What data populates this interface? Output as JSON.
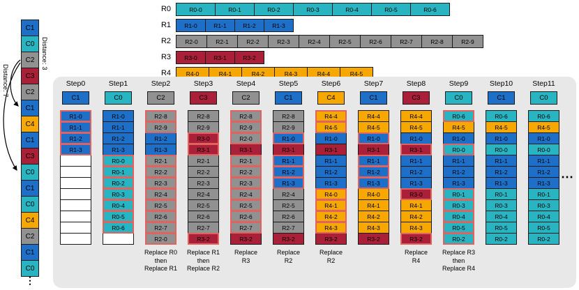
{
  "colors": {
    "c0": "#29B4C2",
    "c1": "#1E6FC8",
    "c2": "#919191",
    "c3": "#AA2038",
    "c4": "#F6A800",
    "empty": "#FFFFFF",
    "highlight_border": "#E0635F",
    "panel_bg": "#E8E8E8"
  },
  "access_sequence": {
    "items": [
      {
        "label": "C1",
        "color": "c1"
      },
      {
        "label": "C0",
        "color": "c0"
      },
      {
        "label": "C2",
        "color": "c2"
      },
      {
        "label": "C3",
        "color": "c3"
      },
      {
        "label": "C2",
        "color": "c2"
      },
      {
        "label": "C1",
        "color": "c1"
      },
      {
        "label": "C4",
        "color": "c4"
      },
      {
        "label": "C1",
        "color": "c1"
      },
      {
        "label": "C3",
        "color": "c3"
      },
      {
        "label": "C0",
        "color": "c0"
      },
      {
        "label": "C1",
        "color": "c1"
      },
      {
        "label": "C0",
        "color": "c0"
      },
      {
        "label": "C4",
        "color": "c4"
      },
      {
        "label": "C2",
        "color": "c2"
      },
      {
        "label": "C1",
        "color": "c1"
      },
      {
        "label": "C0",
        "color": "c0"
      }
    ],
    "ellipsis": "⋮"
  },
  "distance_annotations": [
    {
      "label": "Distance: 3",
      "from_index": 2,
      "to_index": 5
    },
    {
      "label": "Distance: 7",
      "from_index": 2,
      "to_index": 9
    }
  ],
  "rows": [
    {
      "name": "R0",
      "color": "c0",
      "cells": [
        "R0-0",
        "R0-1",
        "R0-2",
        "R0-3",
        "R0-4",
        "R0-5",
        "R0-6"
      ]
    },
    {
      "name": "R1",
      "color": "c1",
      "cells": [
        "R1-0",
        "R1-1",
        "R1-2",
        "R1-3"
      ]
    },
    {
      "name": "R2",
      "color": "c2",
      "cells": [
        "R2-0",
        "R2-1",
        "R2-2",
        "R2-3",
        "R2-4",
        "R2-5",
        "R2-6",
        "R2-7",
        "R2-8",
        "R2-9"
      ]
    },
    {
      "name": "R3",
      "color": "c3",
      "cells": [
        "R3-0",
        "R3-1",
        "R3-2"
      ]
    },
    {
      "name": "R4",
      "color": "c4",
      "cells": [
        "R4-0",
        "R4-1",
        "R4-2",
        "R4-3",
        "R4-4",
        "R4-5"
      ]
    }
  ],
  "steps": [
    {
      "label": "Step0",
      "access": "C1",
      "access_color": "c1",
      "note": "",
      "slots": [
        {
          "t": "R1-0",
          "c": "c1",
          "h": true
        },
        {
          "t": "R1-1",
          "c": "c1",
          "h": true
        },
        {
          "t": "R1-2",
          "c": "c1",
          "h": true
        },
        {
          "t": "R1-3",
          "c": "c1",
          "h": true
        },
        {
          "t": "",
          "c": "empty",
          "h": false
        },
        {
          "t": "",
          "c": "empty",
          "h": false
        },
        {
          "t": "",
          "c": "empty",
          "h": false
        },
        {
          "t": "",
          "c": "empty",
          "h": false
        },
        {
          "t": "",
          "c": "empty",
          "h": false
        },
        {
          "t": "",
          "c": "empty",
          "h": false
        },
        {
          "t": "",
          "c": "empty",
          "h": false
        },
        {
          "t": "",
          "c": "empty",
          "h": false
        }
      ]
    },
    {
      "label": "Step1",
      "access": "C0",
      "access_color": "c0",
      "note": "",
      "slots": [
        {
          "t": "R1-0",
          "c": "c1",
          "h": false
        },
        {
          "t": "R1-1",
          "c": "c1",
          "h": false
        },
        {
          "t": "R1-2",
          "c": "c1",
          "h": false
        },
        {
          "t": "R1-3",
          "c": "c1",
          "h": false
        },
        {
          "t": "R0-0",
          "c": "c0",
          "h": true
        },
        {
          "t": "R0-1",
          "c": "c0",
          "h": true
        },
        {
          "t": "R0-2",
          "c": "c0",
          "h": true
        },
        {
          "t": "R0-3",
          "c": "c0",
          "h": true
        },
        {
          "t": "R0-4",
          "c": "c0",
          "h": true
        },
        {
          "t": "R0-5",
          "c": "c0",
          "h": true
        },
        {
          "t": "R0-6",
          "c": "c0",
          "h": true
        },
        {
          "t": "",
          "c": "empty",
          "h": false
        }
      ]
    },
    {
      "label": "Step2",
      "access": "C2",
      "access_color": "c2",
      "note": "Replace R0\nthen\nReplace R1",
      "slots": [
        {
          "t": "R2-8",
          "c": "c2",
          "h": true
        },
        {
          "t": "R2-9",
          "c": "c2",
          "h": true
        },
        {
          "t": "R1-2",
          "c": "c1",
          "h": false
        },
        {
          "t": "R1-3",
          "c": "c1",
          "h": false
        },
        {
          "t": "R2-1",
          "c": "c2",
          "h": true
        },
        {
          "t": "R2-2",
          "c": "c2",
          "h": true
        },
        {
          "t": "R2-3",
          "c": "c2",
          "h": true
        },
        {
          "t": "R2-4",
          "c": "c2",
          "h": true
        },
        {
          "t": "R2-5",
          "c": "c2",
          "h": true
        },
        {
          "t": "R2-6",
          "c": "c2",
          "h": true
        },
        {
          "t": "R2-7",
          "c": "c2",
          "h": true
        },
        {
          "t": "R2-0",
          "c": "c2",
          "h": true
        }
      ]
    },
    {
      "label": "Step3",
      "access": "C3",
      "access_color": "c3",
      "note": "Replace R1\nthen\nReplace R2",
      "slots": [
        {
          "t": "R2-8",
          "c": "c2",
          "h": false
        },
        {
          "t": "R2-9",
          "c": "c2",
          "h": false
        },
        {
          "t": "R3-0",
          "c": "c3",
          "h": true
        },
        {
          "t": "R3-1",
          "c": "c3",
          "h": true
        },
        {
          "t": "R2-1",
          "c": "c2",
          "h": false
        },
        {
          "t": "R2-2",
          "c": "c2",
          "h": false
        },
        {
          "t": "R2-3",
          "c": "c2",
          "h": false
        },
        {
          "t": "R2-4",
          "c": "c2",
          "h": false
        },
        {
          "t": "R2-5",
          "c": "c2",
          "h": false
        },
        {
          "t": "R2-6",
          "c": "c2",
          "h": false
        },
        {
          "t": "R2-7",
          "c": "c2",
          "h": false
        },
        {
          "t": "R3-2",
          "c": "c3",
          "h": true
        }
      ]
    },
    {
      "label": "Step4",
      "access": "C2",
      "access_color": "c2",
      "note": "Replace\nR3",
      "slots": [
        {
          "t": "R2-8",
          "c": "c2",
          "h": true
        },
        {
          "t": "R2-9",
          "c": "c2",
          "h": true
        },
        {
          "t": "R2-0",
          "c": "c2",
          "h": true
        },
        {
          "t": "R3-1",
          "c": "c3",
          "h": false
        },
        {
          "t": "R2-1",
          "c": "c2",
          "h": true
        },
        {
          "t": "R2-2",
          "c": "c2",
          "h": true
        },
        {
          "t": "R2-3",
          "c": "c2",
          "h": true
        },
        {
          "t": "R2-4",
          "c": "c2",
          "h": true
        },
        {
          "t": "R2-5",
          "c": "c2",
          "h": true
        },
        {
          "t": "R2-6",
          "c": "c2",
          "h": true
        },
        {
          "t": "R2-7",
          "c": "c2",
          "h": true
        },
        {
          "t": "R3-2",
          "c": "c3",
          "h": false
        }
      ]
    },
    {
      "label": "Step5",
      "access": "C1",
      "access_color": "c1",
      "note": "Replace\nR2",
      "slots": [
        {
          "t": "R2-8",
          "c": "c2",
          "h": false
        },
        {
          "t": "R2-9",
          "c": "c2",
          "h": false
        },
        {
          "t": "R1-0",
          "c": "c1",
          "h": true
        },
        {
          "t": "R3-1",
          "c": "c3",
          "h": false
        },
        {
          "t": "R1-1",
          "c": "c1",
          "h": true
        },
        {
          "t": "R1-2",
          "c": "c1",
          "h": true
        },
        {
          "t": "R1-3",
          "c": "c1",
          "h": true
        },
        {
          "t": "R2-4",
          "c": "c2",
          "h": false
        },
        {
          "t": "R2-5",
          "c": "c2",
          "h": false
        },
        {
          "t": "R2-6",
          "c": "c2",
          "h": false
        },
        {
          "t": "R2-7",
          "c": "c2",
          "h": false
        },
        {
          "t": "R3-2",
          "c": "c3",
          "h": false
        }
      ]
    },
    {
      "label": "Step6",
      "access": "C4",
      "access_color": "c4",
      "note": "Replace\nR2",
      "slots": [
        {
          "t": "R4-4",
          "c": "c4",
          "h": true
        },
        {
          "t": "R4-5",
          "c": "c4",
          "h": true
        },
        {
          "t": "R1-0",
          "c": "c1",
          "h": false
        },
        {
          "t": "R3-1",
          "c": "c3",
          "h": false
        },
        {
          "t": "R1-1",
          "c": "c1",
          "h": false
        },
        {
          "t": "R1-2",
          "c": "c1",
          "h": false
        },
        {
          "t": "R1-3",
          "c": "c1",
          "h": false
        },
        {
          "t": "R4-0",
          "c": "c4",
          "h": true
        },
        {
          "t": "R4-1",
          "c": "c4",
          "h": true
        },
        {
          "t": "R4-2",
          "c": "c4",
          "h": true
        },
        {
          "t": "R4-3",
          "c": "c4",
          "h": true
        },
        {
          "t": "R3-2",
          "c": "c3",
          "h": false
        }
      ]
    },
    {
      "label": "Step7",
      "access": "C1",
      "access_color": "c1",
      "note": "",
      "slots": [
        {
          "t": "R4-4",
          "c": "c4",
          "h": false
        },
        {
          "t": "R4-5",
          "c": "c4",
          "h": false
        },
        {
          "t": "R1-0",
          "c": "c1",
          "h": true
        },
        {
          "t": "R3-1",
          "c": "c3",
          "h": false
        },
        {
          "t": "R1-1",
          "c": "c1",
          "h": true
        },
        {
          "t": "R1-2",
          "c": "c1",
          "h": true
        },
        {
          "t": "R1-3",
          "c": "c1",
          "h": true
        },
        {
          "t": "R4-0",
          "c": "c4",
          "h": false
        },
        {
          "t": "R4-1",
          "c": "c4",
          "h": false
        },
        {
          "t": "R4-2",
          "c": "c4",
          "h": false
        },
        {
          "t": "R4-3",
          "c": "c4",
          "h": false
        },
        {
          "t": "R3-2",
          "c": "c3",
          "h": false
        }
      ]
    },
    {
      "label": "Step8",
      "access": "C3",
      "access_color": "c3",
      "note": "Replace\nR4",
      "slots": [
        {
          "t": "R4-4",
          "c": "c4",
          "h": false
        },
        {
          "t": "R4-5",
          "c": "c4",
          "h": false
        },
        {
          "t": "R1-0",
          "c": "c1",
          "h": false
        },
        {
          "t": "R3-1",
          "c": "c3",
          "h": true
        },
        {
          "t": "R1-1",
          "c": "c1",
          "h": false
        },
        {
          "t": "R1-2",
          "c": "c1",
          "h": false
        },
        {
          "t": "R1-3",
          "c": "c1",
          "h": false
        },
        {
          "t": "R3-0",
          "c": "c3",
          "h": true
        },
        {
          "t": "R4-1",
          "c": "c4",
          "h": false
        },
        {
          "t": "R4-2",
          "c": "c4",
          "h": false
        },
        {
          "t": "R4-3",
          "c": "c4",
          "h": false
        },
        {
          "t": "R3-2",
          "c": "c3",
          "h": true
        }
      ]
    },
    {
      "label": "Step9",
      "access": "C0",
      "access_color": "c0",
      "note": "Replace R3\nthen\nReplace R4",
      "slots": [
        {
          "t": "R0-6",
          "c": "c0",
          "h": true
        },
        {
          "t": "R4-5",
          "c": "c4",
          "h": false
        },
        {
          "t": "R1-0",
          "c": "c1",
          "h": false
        },
        {
          "t": "R0-0",
          "c": "c0",
          "h": true
        },
        {
          "t": "R1-1",
          "c": "c1",
          "h": false
        },
        {
          "t": "R1-2",
          "c": "c1",
          "h": false
        },
        {
          "t": "R1-3",
          "c": "c1",
          "h": false
        },
        {
          "t": "R0-1",
          "c": "c0",
          "h": true
        },
        {
          "t": "R0-3",
          "c": "c0",
          "h": true
        },
        {
          "t": "R0-4",
          "c": "c0",
          "h": true
        },
        {
          "t": "R0-5",
          "c": "c0",
          "h": true
        },
        {
          "t": "R0-2",
          "c": "c0",
          "h": true
        }
      ]
    },
    {
      "label": "Step10",
      "access": "C1",
      "access_color": "c1",
      "note": "",
      "slots": [
        {
          "t": "R0-6",
          "c": "c0",
          "h": false
        },
        {
          "t": "R4-5",
          "c": "c4",
          "h": false
        },
        {
          "t": "R1-0",
          "c": "c1",
          "h": false
        },
        {
          "t": "R0-0",
          "c": "c0",
          "h": false
        },
        {
          "t": "R1-1",
          "c": "c1",
          "h": false
        },
        {
          "t": "R1-2",
          "c": "c1",
          "h": false
        },
        {
          "t": "R1-3",
          "c": "c1",
          "h": false
        },
        {
          "t": "R0-1",
          "c": "c0",
          "h": false
        },
        {
          "t": "R0-3",
          "c": "c0",
          "h": false
        },
        {
          "t": "R0-4",
          "c": "c0",
          "h": false
        },
        {
          "t": "R0-5",
          "c": "c0",
          "h": false
        },
        {
          "t": "R0-2",
          "c": "c0",
          "h": false
        }
      ]
    },
    {
      "label": "Step11",
      "access": "C0",
      "access_color": "c0",
      "note": "",
      "slots": [
        {
          "t": "R0-6",
          "c": "c0",
          "h": false
        },
        {
          "t": "R4-5",
          "c": "c4",
          "h": false
        },
        {
          "t": "R1-0",
          "c": "c1",
          "h": false
        },
        {
          "t": "R0-0",
          "c": "c0",
          "h": false
        },
        {
          "t": "R1-1",
          "c": "c1",
          "h": false
        },
        {
          "t": "R1-2",
          "c": "c1",
          "h": false
        },
        {
          "t": "R1-3",
          "c": "c1",
          "h": false
        },
        {
          "t": "R0-1",
          "c": "c0",
          "h": false
        },
        {
          "t": "R0-3",
          "c": "c0",
          "h": false
        },
        {
          "t": "R0-4",
          "c": "c0",
          "h": false
        },
        {
          "t": "R0-5",
          "c": "c0",
          "h": false
        },
        {
          "t": "R0-2",
          "c": "c0",
          "h": false
        }
      ]
    }
  ],
  "right_ellipsis": "⋯"
}
